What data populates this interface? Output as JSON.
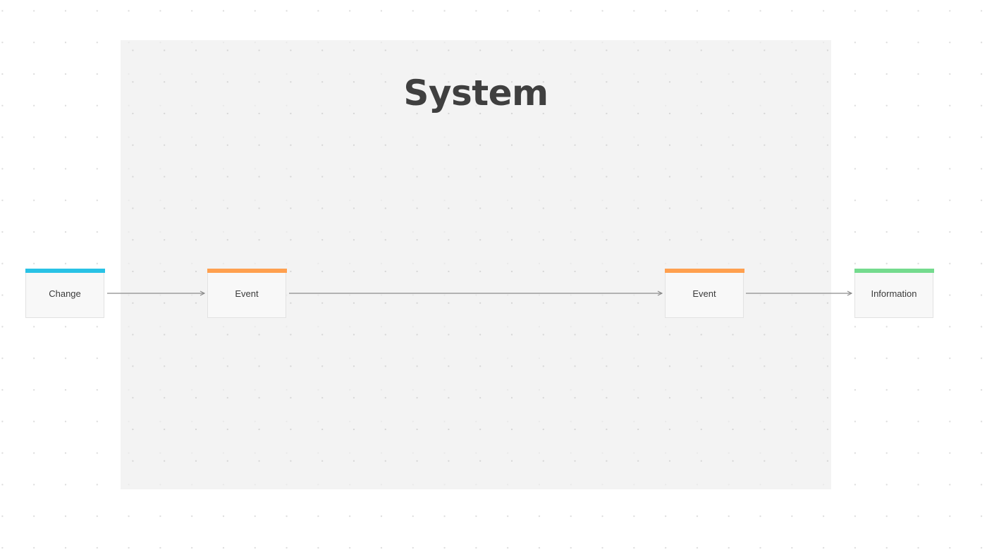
{
  "group": {
    "title": "System",
    "fill": "#f2f2f2"
  },
  "nodes": [
    {
      "id": "change",
      "label": "Change",
      "kind": "trigger",
      "color": "#29c2e5"
    },
    {
      "id": "event1",
      "label": "Event",
      "kind": "event",
      "color": "#ffa04f"
    },
    {
      "id": "event2",
      "label": "Event",
      "kind": "event",
      "color": "#ffa04f"
    },
    {
      "id": "information",
      "label": "Information",
      "kind": "output",
      "color": "#74db8e"
    }
  ],
  "edges": [
    {
      "from": "change",
      "to": "event1"
    },
    {
      "from": "event1",
      "to": "event2"
    },
    {
      "from": "event2",
      "to": "information"
    }
  ],
  "style": {
    "connector_color": "#8a8a8a",
    "title_color": "#3f3f3f"
  }
}
